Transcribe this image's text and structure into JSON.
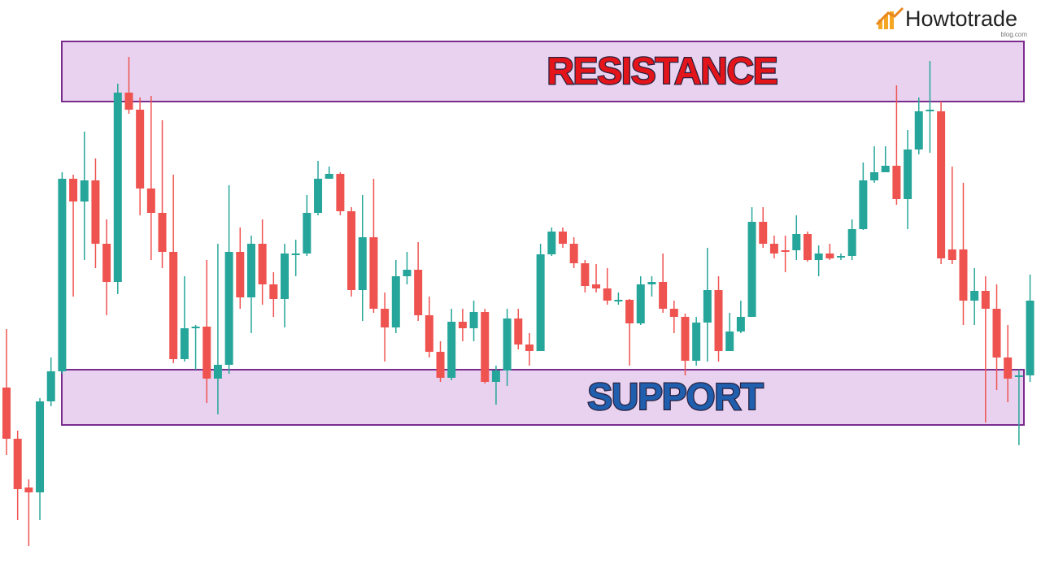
{
  "chart_data": {
    "type": "candlestick",
    "ylim": [
      0,
      700
    ],
    "up_color": "#26a69a",
    "down_color": "#ef5350",
    "open": [
      223,
      160,
      100,
      94,
      206,
      243,
      480,
      452,
      478,
      400,
      353,
      586,
      565,
      468,
      438,
      390,
      258,
      296,
      298,
      234,
      251,
      390,
      334,
      400,
      350,
      332,
      387,
      388,
      438,
      480,
      486,
      440,
      343,
      408,
      320,
      297,
      360,
      368,
      312,
      267,
      235,
      304,
      296,
      316,
      230,
      244,
      308,
      276,
      268,
      387,
      415,
      400,
      376,
      350,
      345,
      330,
      331,
      302,
      350,
      353,
      320,
      310,
      256,
      303,
      343,
      268,
      292,
      310,
      427,
      400,
      392,
      392,
      412,
      380,
      388,
      383,
      385,
      418,
      478,
      488,
      496,
      455,
      516,
      563,
      563,
      393,
      393,
      330,
      342,
      320,
      260,
      236,
      238
    ],
    "high": [
      295,
      170,
      110,
      210,
      260,
      488,
      485,
      538,
      505,
      430,
      597,
      630,
      580,
      582,
      552,
      485,
      360,
      300,
      380,
      400,
      472,
      420,
      410,
      430,
      365,
      400,
      405,
      460,
      502,
      495,
      488,
      445,
      460,
      480,
      340,
      380,
      390,
      402,
      335,
      280,
      320,
      320,
      330,
      320,
      250,
      320,
      320,
      290,
      400,
      420,
      420,
      408,
      380,
      375,
      370,
      340,
      332,
      360,
      360,
      388,
      330,
      314,
      310,
      395,
      360,
      315,
      330,
      445,
      445,
      410,
      410,
      435,
      415,
      398,
      400,
      388,
      430,
      500,
      520,
      520,
      595,
      540,
      580,
      625,
      575,
      495,
      475,
      370,
      360,
      350,
      300,
      245,
      362
    ],
    "low": [
      140,
      60,
      28,
      60,
      200,
      240,
      335,
      380,
      370,
      312,
      338,
      560,
      435,
      380,
      370,
      253,
      255,
      245,
      204,
      190,
      240,
      320,
      290,
      325,
      310,
      297,
      360,
      385,
      435,
      480,
      435,
      335,
      305,
      315,
      255,
      290,
      350,
      305,
      260,
      230,
      232,
      280,
      280,
      228,
      202,
      225,
      270,
      250,
      268,
      385,
      395,
      370,
      340,
      340,
      325,
      325,
      250,
      300,
      335,
      315,
      290,
      238,
      250,
      255,
      255,
      268,
      290,
      310,
      395,
      382,
      365,
      380,
      378,
      360,
      380,
      380,
      380,
      417,
      475,
      488,
      448,
      418,
      510,
      512,
      375,
      375,
      300,
      300,
      180,
      220,
      205,
      152,
      230
    ],
    "close": [
      160,
      98,
      94,
      206,
      243,
      480,
      452,
      478,
      400,
      353,
      586,
      565,
      468,
      438,
      390,
      258,
      296,
      298,
      234,
      251,
      390,
      334,
      400,
      350,
      332,
      388,
      388,
      438,
      480,
      486,
      440,
      343,
      408,
      320,
      297,
      360,
      368,
      312,
      267,
      235,
      304,
      296,
      316,
      230,
      244,
      308,
      276,
      268,
      387,
      415,
      400,
      376,
      348,
      345,
      330,
      331,
      302,
      350,
      353,
      320,
      310,
      256,
      303,
      343,
      268,
      292,
      310,
      427,
      400,
      388,
      390,
      412,
      380,
      388,
      382,
      385,
      418,
      478,
      488,
      496,
      455,
      516,
      563,
      565,
      382,
      380,
      330,
      342,
      320,
      260,
      234,
      238,
      330
    ],
    "zones": [
      {
        "label": "RESISTANCE",
        "from": 575,
        "to": 649,
        "color": "#e8d2ef",
        "text_color": "#e3151a"
      },
      {
        "label": "SUPPORT",
        "from": 177,
        "to": 245,
        "color": "#e8d2ef",
        "text_color": "#1f5fae"
      }
    ],
    "brand": {
      "name": "Howtotrade",
      "sub": "blog.com"
    }
  }
}
